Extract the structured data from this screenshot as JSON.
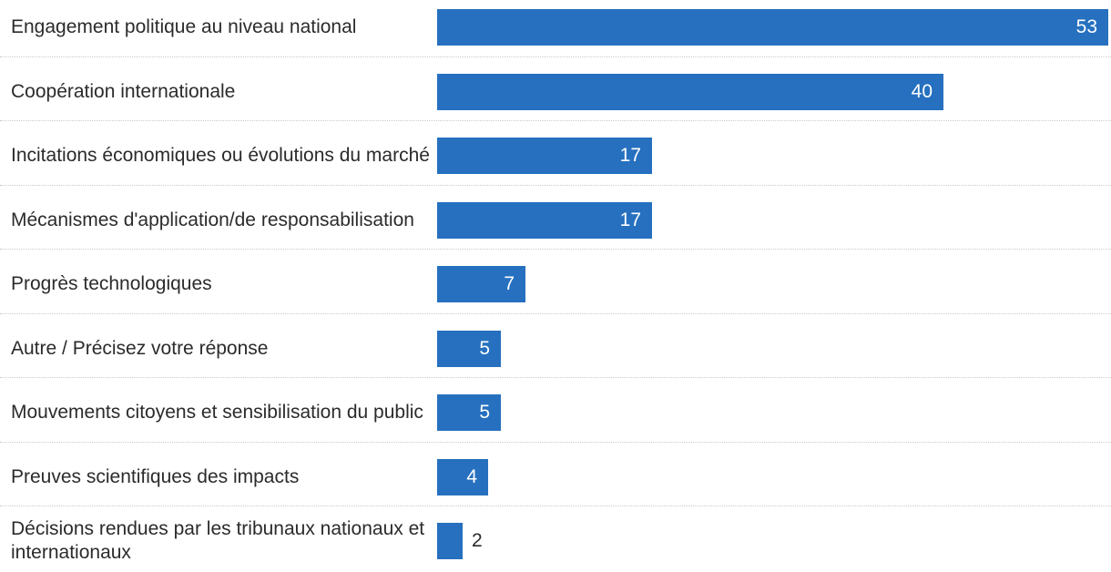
{
  "chart_data": {
    "type": "bar",
    "orientation": "horizontal",
    "title": "",
    "xlabel": "",
    "ylabel": "",
    "xlim": [
      0,
      53
    ],
    "grid": false,
    "legend": "none",
    "bar_color": "#2670bf",
    "categories": [
      "Engagement politique au niveau national",
      "Coopération internationale",
      "Incitations économiques ou évolutions du marché",
      "Mécanismes d'application/de responsabilisation",
      "Progrès technologiques",
      "Autre / Précisez votre réponse",
      "Mouvements citoyens et sensibilisation du public",
      "Preuves scientifiques des impacts",
      "Décisions rendues par les tribunaux nationaux et internationaux"
    ],
    "values": [
      53,
      40,
      17,
      17,
      7,
      5,
      5,
      4,
      2
    ]
  }
}
